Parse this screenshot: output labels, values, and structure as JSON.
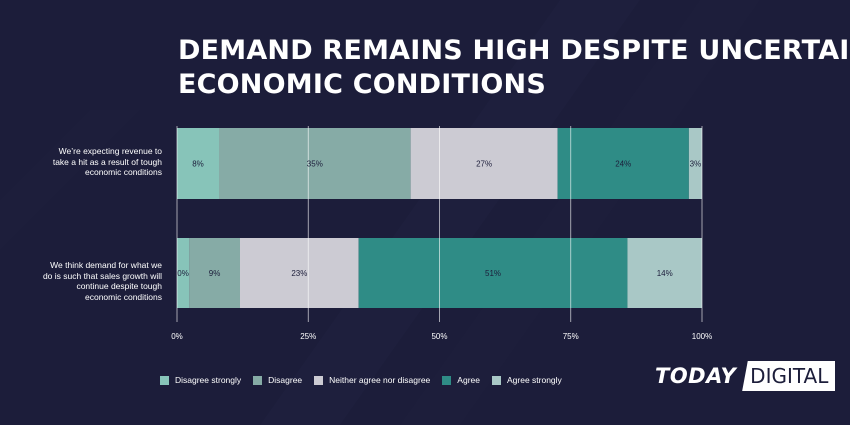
{
  "title_lines": [
    "DEMAND REMAINS HIGH DESPITE UNCERTAIN",
    "ECONOMIC CONDITIONS"
  ],
  "logo": {
    "left": "TODAY",
    "right": "DIGITAL"
  },
  "colors": {
    "background": "#1c1d3a",
    "disagree_strongly": "#87c4b9",
    "disagree": "#86aba6",
    "neither": "#cccbd3",
    "agree": "#2f8c86",
    "agree_strongly": "#a9c8c6",
    "grid": "#ffffff",
    "axis_text": "#ffffff"
  },
  "chart_data": {
    "type": "bar",
    "orientation": "horizontal",
    "stacked": true,
    "title": "DEMAND REMAINS HIGH DESPITE UNCERTAIN ECONOMIC CONDITIONS",
    "categories": [
      "We’re expecting revenue to take a hit as a result of tough economic conditions",
      "We think demand for what we do is such that sales growth will continue despite tough economic conditions"
    ],
    "category_lines": [
      [
        "We’re expecting revenue to",
        "take a hit as a result of tough",
        "economic conditions"
      ],
      [
        "We think demand for what we",
        "do is such that sales growth will",
        "continue despite tough",
        "economic conditions"
      ]
    ],
    "series": [
      {
        "name": "Disagree strongly",
        "values": [
          8,
          0
        ],
        "display_values": [
          8,
          2.3
        ],
        "labels": [
          "8%",
          "0%"
        ]
      },
      {
        "name": "Disagree",
        "values": [
          35,
          9
        ],
        "display_values": [
          36.5,
          9.7
        ],
        "labels": [
          "35%",
          "9%"
        ]
      },
      {
        "name": "Neither agree nor disagree",
        "values": [
          27,
          23
        ],
        "display_values": [
          28,
          22.6
        ],
        "labels": [
          "27%",
          "23%"
        ]
      },
      {
        "name": "Agree",
        "values": [
          24,
          51
        ],
        "display_values": [
          25,
          51.2
        ],
        "labels": [
          "24%",
          "51%"
        ]
      },
      {
        "name": "Agree strongly",
        "values": [
          3,
          14
        ],
        "display_values": [
          2.5,
          14.2
        ],
        "labels": [
          "3%",
          "14%"
        ]
      }
    ],
    "xlim": [
      0,
      100
    ],
    "xticks": [
      0,
      25,
      50,
      75,
      100
    ],
    "xtick_labels": [
      "0%",
      "25%",
      "50%",
      "75%",
      "100%"
    ],
    "grid": true,
    "legend_position": "bottom"
  }
}
